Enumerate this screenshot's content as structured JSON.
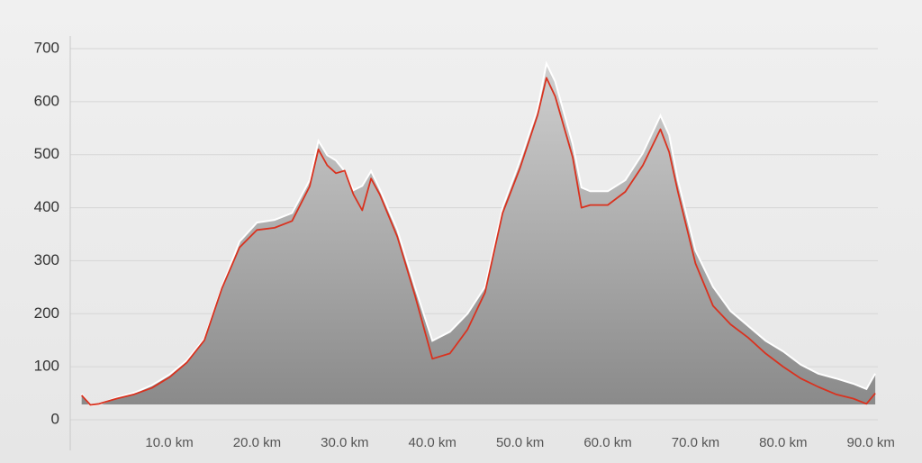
{
  "chart_data": {
    "type": "area",
    "x": [
      0,
      1,
      2,
      4,
      6,
      8,
      10,
      12,
      14,
      16,
      18,
      20,
      22,
      24,
      26,
      27,
      28,
      29,
      30,
      31,
      32,
      33,
      34,
      36,
      38,
      40,
      42,
      44,
      46,
      48,
      50,
      52,
      53,
      54,
      56,
      57,
      58,
      60,
      62,
      64,
      66,
      67,
      68,
      70,
      72,
      74,
      76,
      78,
      80,
      82,
      84,
      86,
      88,
      89.5,
      90.5
    ],
    "series": [
      {
        "color": "#9a9a9a",
        "values": [
          49,
          27,
          29,
          42,
          51,
          65,
          85,
          112,
          153,
          251,
          336,
          372,
          377,
          390,
          452,
          526,
          499,
          489,
          469,
          433,
          441,
          469,
          435,
          358,
          251,
          149,
          166,
          200,
          251,
          401,
          489,
          587,
          672,
          638,
          520,
          438,
          431,
          431,
          452,
          503,
          574,
          537,
          452,
          319,
          251,
          205,
          177,
          149,
          129,
          104,
          87,
          78,
          68,
          58,
          87
        ]
      },
      {
        "color": "#d9321f",
        "values": [
          46,
          28,
          30,
          40,
          48,
          60,
          80,
          108,
          150,
          248,
          325,
          358,
          362,
          375,
          440,
          510,
          480,
          465,
          470,
          425,
          395,
          455,
          425,
          345,
          235,
          115,
          125,
          170,
          240,
          390,
          475,
          575,
          645,
          610,
          495,
          400,
          405,
          405,
          430,
          480,
          548,
          505,
          430,
          295,
          215,
          180,
          155,
          125,
          100,
          78,
          62,
          48,
          40,
          30,
          50
        ]
      }
    ],
    "xlim": [
      -1.3,
      90.8
    ],
    "xticks": [
      {
        "value": 10,
        "label": "10.0 km"
      },
      {
        "value": 20,
        "label": "20.0 km"
      },
      {
        "value": 30,
        "label": "30.0 km"
      },
      {
        "value": 40,
        "label": "40.0 km"
      },
      {
        "value": 50,
        "label": "50.0 km"
      },
      {
        "value": 60,
        "label": "60.0 km"
      },
      {
        "value": 70,
        "label": "70.0 km"
      },
      {
        "value": 80,
        "label": "80.0 km"
      },
      {
        "value": 90,
        "label": "90.0 km"
      }
    ],
    "ylim": [
      0,
      700
    ],
    "yticks": [
      0,
      100,
      200,
      300,
      400,
      500,
      600,
      700
    ],
    "grid": true
  }
}
